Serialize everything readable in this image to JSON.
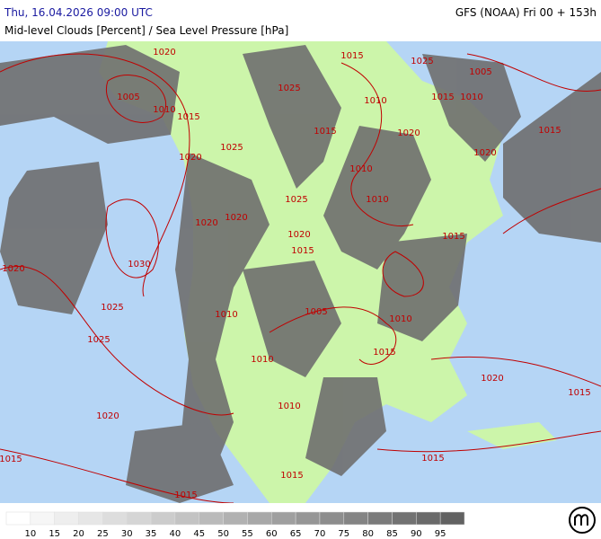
{
  "header": {
    "datetime": "Thu, 16.04.2026 09:00 UTC",
    "model": "GFS (NOAA) Fri 00 + 153h",
    "subtitle": "Mid-level Clouds [Percent] / Sea Level Pressure [hPa]"
  },
  "isobar_labels": [
    "1020",
    "1005",
    "1010",
    "1015",
    "1020",
    "1025",
    "1015",
    "1025",
    "1010",
    "1015",
    "1005",
    "1015",
    "1010",
    "1025",
    "1020",
    "1020",
    "1015",
    "1010",
    "1010",
    "1025",
    "1020",
    "1020",
    "1020",
    "1015",
    "1015",
    "1030",
    "1020",
    "1025",
    "1010",
    "1005",
    "1010",
    "1025",
    "1015",
    "1010",
    "1020",
    "1015",
    "1020",
    "1010",
    "1015",
    "1015",
    "1015",
    "1015"
  ],
  "legend": {
    "labels": [
      "10",
      "15",
      "20",
      "25",
      "30",
      "35",
      "40",
      "45",
      "50",
      "55",
      "60",
      "65",
      "70",
      "75",
      "80",
      "85",
      "90",
      "95"
    ],
    "colors": [
      "#ffffff",
      "#f6f6f6",
      "#eeeeee",
      "#e6e6e6",
      "#dddddd",
      "#d5d5d5",
      "#cccccc",
      "#c3c3c3",
      "#bababa",
      "#b1b1b1",
      "#a8a8a8",
      "#9f9f9f",
      "#969696",
      "#8d8d8d",
      "#848484",
      "#7b7b7b",
      "#727272",
      "#6a6a6a",
      "#626262"
    ]
  }
}
